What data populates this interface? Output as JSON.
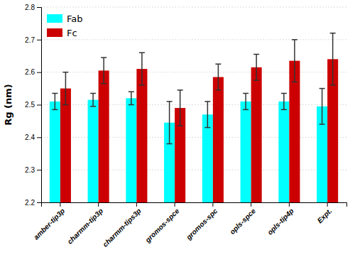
{
  "chart_data": {
    "type": "bar",
    "categories": [
      "amber-tip3p",
      "charmm-tip3p",
      "charmm-tips3p",
      "gromos-spce",
      "gromos-spc",
      "opls-spce",
      "opls-tip4p",
      "Expt."
    ],
    "series": [
      {
        "name": "Fab",
        "color": "#00FFFF",
        "values": [
          2.51,
          2.515,
          2.52,
          2.445,
          2.47,
          2.51,
          2.51,
          2.495
        ],
        "errors": [
          0.025,
          0.02,
          0.02,
          0.065,
          0.04,
          0.025,
          0.025,
          0.055
        ]
      },
      {
        "name": "Fc",
        "color": "#CC0000",
        "values": [
          2.55,
          2.605,
          2.61,
          2.49,
          2.585,
          2.615,
          2.635,
          2.64
        ],
        "errors": [
          0.05,
          0.04,
          0.05,
          0.055,
          0.04,
          0.04,
          0.065,
          0.08
        ]
      }
    ],
    "y_label": "Rg (nm)",
    "ylim": [
      2.2,
      2.8
    ],
    "yticks": [
      2.2,
      2.3,
      2.4,
      2.5,
      2.6,
      2.7,
      2.8
    ],
    "grid": true,
    "legend": "upper left"
  }
}
